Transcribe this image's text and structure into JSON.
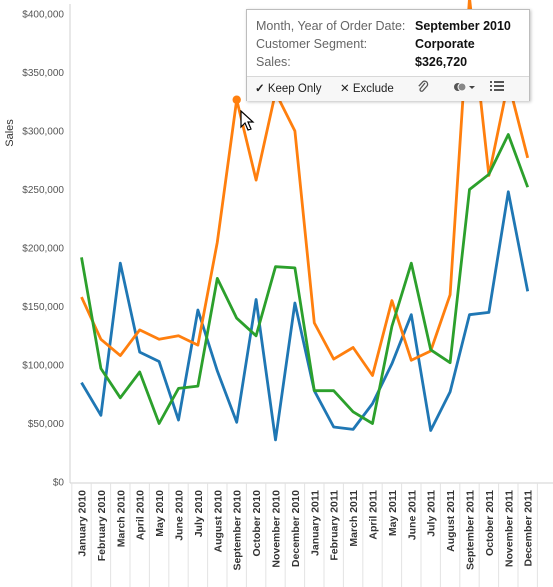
{
  "chart_data": {
    "type": "line",
    "ylabel": "Sales",
    "ylim": [
      0,
      400000
    ],
    "yticks": [
      "$0",
      "$50,000",
      "$100,000",
      "$150,000",
      "$200,000",
      "$250,000",
      "$300,000",
      "$350,000",
      "$400,000"
    ],
    "categories": [
      "January 2010",
      "February 2010",
      "March 2010",
      "April 2010",
      "May 2010",
      "June 2010",
      "July 2010",
      "August 2010",
      "September 2010",
      "October 2010",
      "November 2010",
      "December 2010",
      "January 2011",
      "February 2011",
      "March 2011",
      "April 2011",
      "May 2011",
      "June 2011",
      "July 2011",
      "August 2011",
      "September 2011",
      "October 2011",
      "November 2011",
      "December 2011"
    ],
    "series": [
      {
        "color": "#1f77b4",
        "values": [
          85000,
          57000,
          187000,
          111000,
          103000,
          53000,
          147000,
          95000,
          51000,
          156000,
          36000,
          153000,
          78000,
          47000,
          45000,
          67000,
          101000,
          143000,
          44000,
          77000,
          143000,
          145000,
          248000,
          163000
        ]
      },
      {
        "color": "#ff7f0e",
        "values": [
          158000,
          122000,
          108000,
          130000,
          122000,
          125000,
          117000,
          205000,
          326720,
          258000,
          333000,
          300000,
          136000,
          105000,
          115000,
          91000,
          155000,
          104000,
          112000,
          160000,
          420000,
          262000,
          342000,
          277000
        ]
      },
      {
        "color": "#2ca02c",
        "values": [
          192000,
          97000,
          72000,
          94000,
          50000,
          80000,
          82000,
          174000,
          140000,
          125000,
          184000,
          183000,
          78000,
          78000,
          60000,
          50000,
          133000,
          187000,
          113000,
          102000,
          250000,
          263000,
          297000,
          252000
        ]
      }
    ],
    "highlight": {
      "series_index": 1,
      "category_index": 8
    }
  },
  "tooltip": {
    "rows": [
      {
        "label": "Month, Year of Order Date:",
        "value": "September 2010"
      },
      {
        "label": "Customer Segment:",
        "value": "Corporate"
      },
      {
        "label": "Sales:",
        "value": "$326,720"
      }
    ],
    "keep_only": "Keep Only",
    "exclude": "Exclude",
    "keep_icon": "✓",
    "exclude_icon": "✕"
  }
}
